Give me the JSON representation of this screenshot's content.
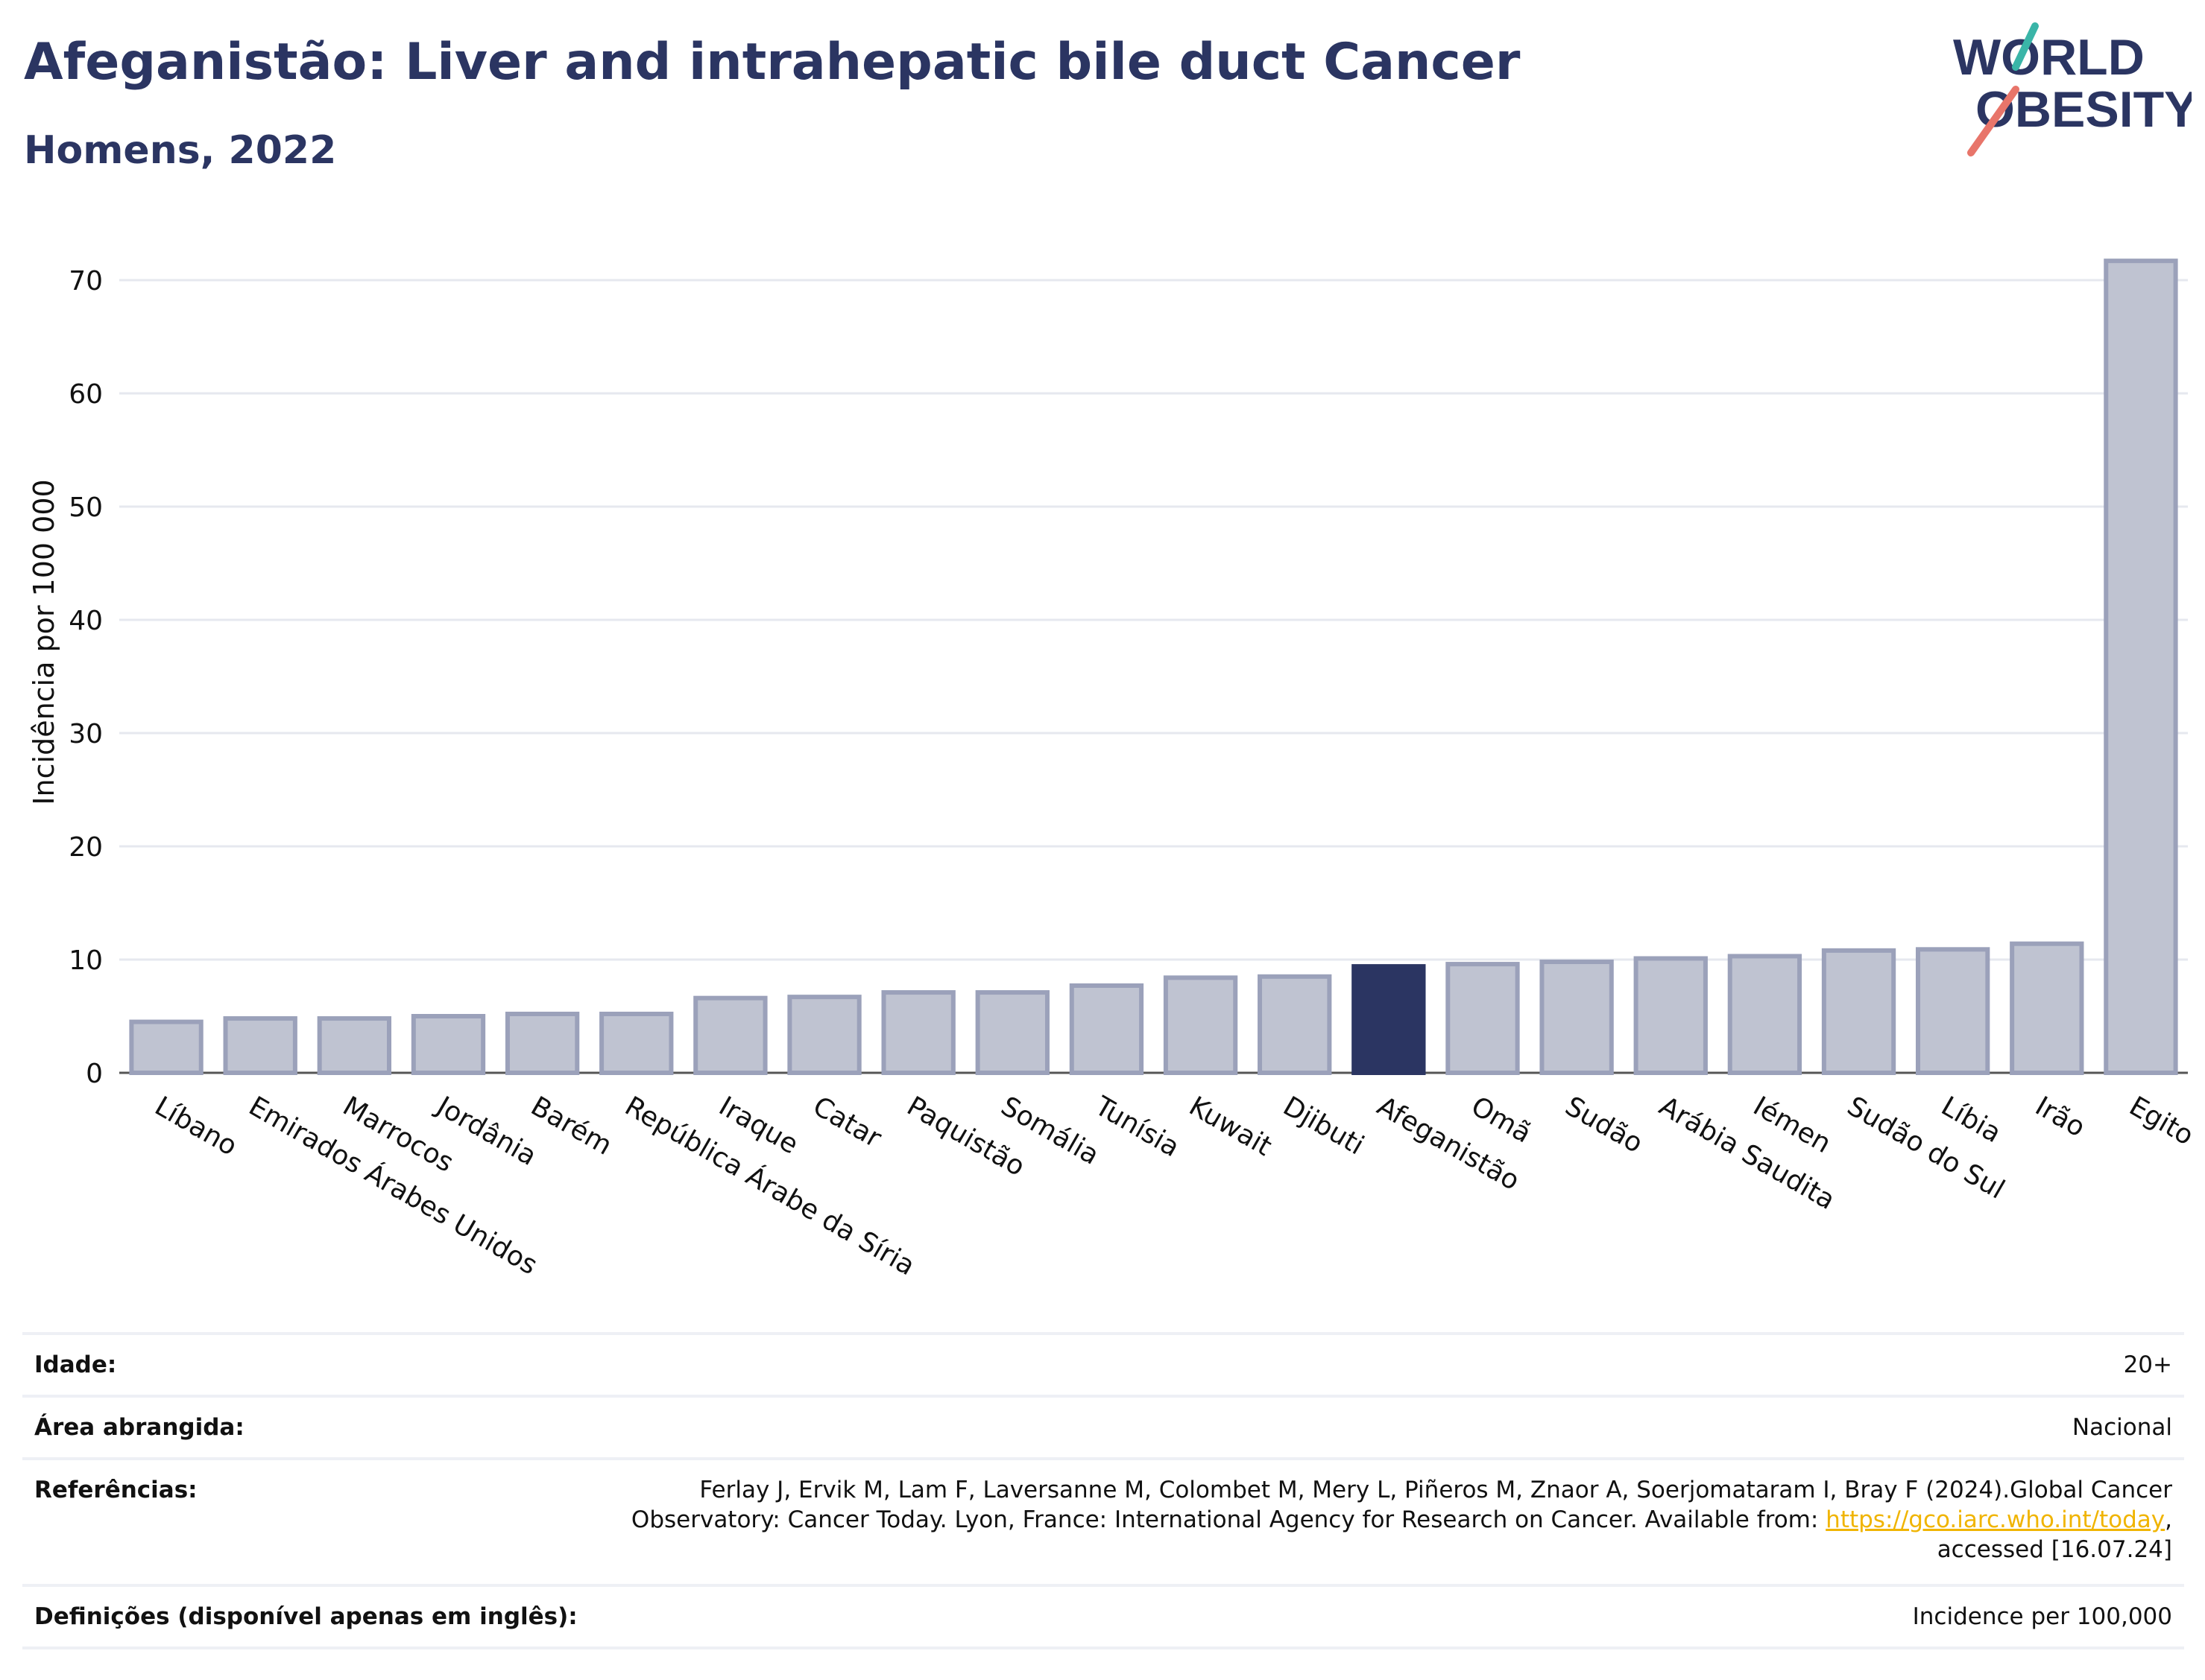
{
  "header": {
    "title": "Afeganistão: Liver and intrahepatic bile duct Cancer",
    "subtitle": "Homens, 2022"
  },
  "logo": {
    "line1": "WORLD",
    "line2": "OBESITY",
    "colors": {
      "text": "#2b3562",
      "slash_teal": "#3ab5a8",
      "slash_coral": "#e8756a"
    }
  },
  "chart_data": {
    "type": "bar",
    "ylabel": "Incidência por 100 000",
    "xlabel": "",
    "ylim": [
      0,
      75
    ],
    "yticks": [
      0,
      10,
      20,
      30,
      40,
      50,
      60,
      70
    ],
    "grid": true,
    "highlight_category": "Afeganistão",
    "colors": {
      "bar": "#bfc3d1",
      "bar_edge": "#9ba1ba",
      "highlight": "#2b3562",
      "grid": "#e6e8ef"
    },
    "categories": [
      "Líbano",
      "Emirados Árabes Unidos",
      "Marrocos",
      "Jordânia",
      "Barém",
      "República Árabe da Síria",
      "Iraque",
      "Catar",
      "Paquistão",
      "Somália",
      "Tunísia",
      "Kuwait",
      "Djibuti",
      "Afeganistão",
      "Omã",
      "Sudão",
      "Arábia Saudita",
      "Iémen",
      "Sudão do Sul",
      "Líbia",
      "Irão",
      "Egito"
    ],
    "values": [
      4.5,
      4.8,
      4.8,
      5.0,
      5.2,
      5.2,
      6.6,
      6.7,
      7.1,
      7.1,
      7.7,
      8.4,
      8.5,
      9.4,
      9.6,
      9.8,
      10.1,
      10.3,
      10.8,
      10.9,
      11.4,
      71.7
    ]
  },
  "info": {
    "rows": [
      {
        "label": "Idade:",
        "lines": [
          "20+"
        ]
      },
      {
        "label": "Área abrangida:",
        "lines": [
          "Nacional"
        ]
      },
      {
        "label": "Referências:",
        "lines": [
          "Ferlay J, Ervik M, Lam F, Laversanne M, Colombet M, Mery L, Piñeros M, Znaor A, Soerjomataram I, Bray F (2024).Global Cancer"
        ],
        "line2_pre": "Observatory: Cancer Today. Lyon, France: International Agency for Research on Cancer. Available from: ",
        "line2_link": "https://gco.iarc.who.int/today",
        "line2_post": ",",
        "line3": "accessed [16.07.24]"
      },
      {
        "label": "Definições (disponível apenas em inglês):",
        "lines": [
          "Incidence per 100,000"
        ]
      }
    ]
  }
}
